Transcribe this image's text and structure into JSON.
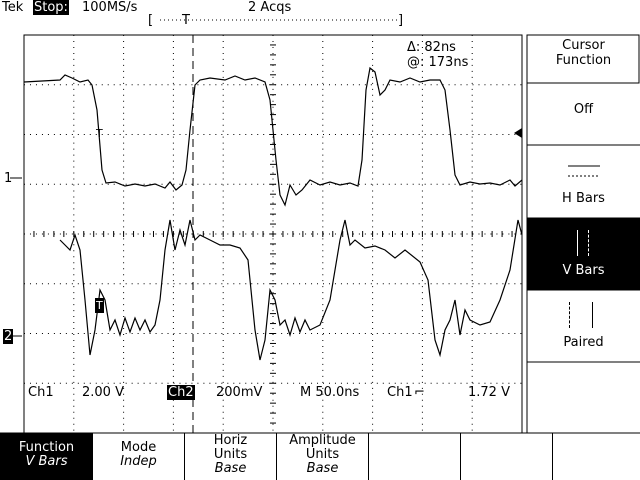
{
  "header": {
    "brand": "Tek",
    "status": "Stop:",
    "sample_rate": "100MS/s",
    "acquisitions": "2 Acqs",
    "record_open": "[",
    "record_close": "]",
    "trigger_position": "T"
  },
  "cursor_readout": {
    "delta": "Δ: 82ns",
    "at": "@: 173ns"
  },
  "channel_markers": [
    "1",
    "2"
  ],
  "trace_trigger_marks": [
    "T",
    "T"
  ],
  "status_bar": {
    "ch1_label": "Ch1",
    "ch1_scale": "2.00 V",
    "ch2_label": "Ch2",
    "ch2_scale": "200mV",
    "timebase": "M 50.0ns",
    "trigger_source": "Ch1",
    "trigger_level": "1.72 V"
  },
  "side_menu": {
    "title": "Cursor Function",
    "items": [
      {
        "label": "Off",
        "selected": false
      },
      {
        "label": "H Bars",
        "selected": false
      },
      {
        "label": "V Bars",
        "selected": true
      },
      {
        "label": "Paired",
        "selected": false
      }
    ]
  },
  "bottom_menu": [
    {
      "label": "Function",
      "value": "V Bars",
      "selected": true
    },
    {
      "label": "Mode",
      "value": "Indep",
      "selected": false
    },
    {
      "label": "Horiz Units",
      "value": "Base",
      "selected": false
    },
    {
      "label": "Amplitude Units",
      "value": "Base",
      "selected": false
    }
  ]
}
